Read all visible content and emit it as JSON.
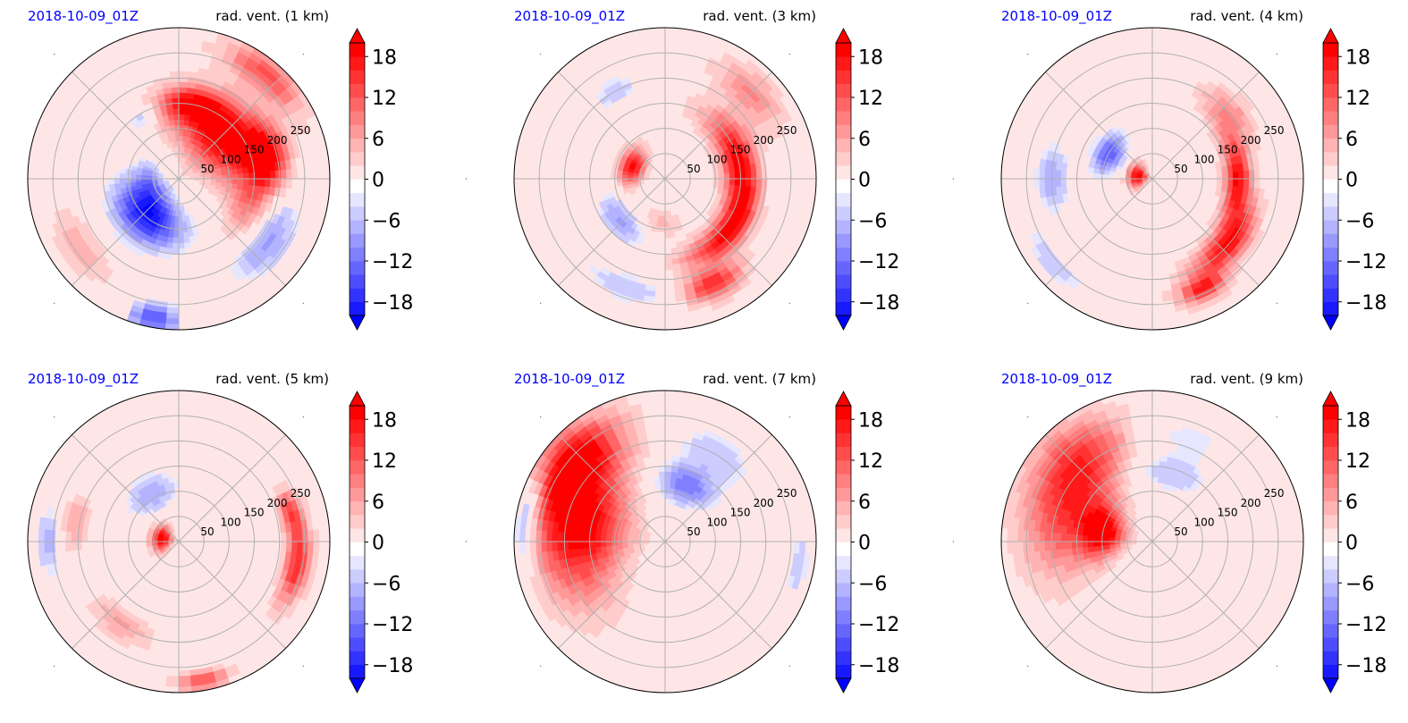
{
  "chart_data": [
    {
      "type": "heatmap",
      "projection": "polar",
      "title_left": "2018-10-09_01Z",
      "title_right": "rad. vent. (1 km)",
      "radial_ticks": [
        50,
        100,
        150,
        200,
        250
      ],
      "rmax": 300,
      "colorbar": {
        "ticks": [
          18,
          12,
          6,
          0,
          -6,
          -12,
          -18
        ],
        "range": [
          -20,
          20
        ],
        "extend": "both"
      },
      "blobs": [
        {
          "r": 120,
          "theta": 45,
          "sr": 70,
          "st": 50,
          "v": 20
        },
        {
          "r": 180,
          "theta": 15,
          "sr": 40,
          "st": 20,
          "v": 18
        },
        {
          "r": 270,
          "theta": 50,
          "sr": 35,
          "st": 20,
          "v": 12
        },
        {
          "r": 150,
          "theta": 80,
          "sr": 30,
          "st": 25,
          "v": 14
        },
        {
          "r": 95,
          "theta": 230,
          "sr": 55,
          "st": 45,
          "v": -20
        },
        {
          "r": 220,
          "theta": 325,
          "sr": 40,
          "st": 25,
          "v": -9
        },
        {
          "r": 150,
          "theta": 340,
          "sr": 35,
          "st": 25,
          "v": 7
        },
        {
          "r": 280,
          "theta": 260,
          "sr": 30,
          "st": 10,
          "v": -15
        },
        {
          "r": 240,
          "theta": 215,
          "sr": 40,
          "st": 20,
          "v": 5
        },
        {
          "r": 60,
          "theta": 185,
          "sr": 30,
          "st": 40,
          "v": -8
        },
        {
          "r": 140,
          "theta": 120,
          "sr": 25,
          "st": 15,
          "v": -7
        }
      ]
    },
    {
      "type": "heatmap",
      "projection": "polar",
      "title_left": "2018-10-09_01Z",
      "title_right": "rad. vent. (3 km)",
      "radial_ticks": [
        50,
        100,
        150,
        200,
        250
      ],
      "rmax": 300,
      "colorbar": {
        "ticks": [
          18,
          12,
          6,
          0,
          -6,
          -12,
          -18
        ],
        "range": [
          -20,
          20
        ],
        "extend": "both"
      },
      "blobs": [
        {
          "r": 150,
          "theta": 15,
          "sr": 35,
          "st": 40,
          "v": 18
        },
        {
          "r": 165,
          "theta": 320,
          "sr": 30,
          "st": 35,
          "v": 18
        },
        {
          "r": 230,
          "theta": 295,
          "sr": 30,
          "st": 15,
          "v": 16
        },
        {
          "r": 70,
          "theta": 160,
          "sr": 25,
          "st": 30,
          "v": 18
        },
        {
          "r": 240,
          "theta": 45,
          "sr": 40,
          "st": 20,
          "v": 8
        },
        {
          "r": 120,
          "theta": 225,
          "sr": 35,
          "st": 30,
          "v": -9
        },
        {
          "r": 230,
          "theta": 250,
          "sr": 30,
          "st": 25,
          "v": -6
        },
        {
          "r": 200,
          "theta": 120,
          "sr": 35,
          "st": 20,
          "v": -5
        },
        {
          "r": 90,
          "theta": 260,
          "sr": 30,
          "st": 30,
          "v": 5
        }
      ]
    },
    {
      "type": "heatmap",
      "projection": "polar",
      "title_left": "2018-10-09_01Z",
      "title_right": "rad. vent. (4 km)",
      "radial_ticks": [
        50,
        100,
        150,
        200,
        250
      ],
      "rmax": 300,
      "colorbar": {
        "ticks": [
          18,
          12,
          6,
          0,
          -6,
          -12,
          -18
        ],
        "range": [
          -20,
          20
        ],
        "extend": "both"
      },
      "blobs": [
        {
          "r": 30,
          "theta": 170,
          "sr": 20,
          "st": 40,
          "v": 20
        },
        {
          "r": 170,
          "theta": 0,
          "sr": 25,
          "st": 30,
          "v": 18
        },
        {
          "r": 200,
          "theta": 320,
          "sr": 30,
          "st": 25,
          "v": 18
        },
        {
          "r": 240,
          "theta": 295,
          "sr": 25,
          "st": 12,
          "v": 16
        },
        {
          "r": 100,
          "theta": 150,
          "sr": 30,
          "st": 25,
          "v": -14
        },
        {
          "r": 200,
          "theta": 180,
          "sr": 35,
          "st": 20,
          "v": -8
        },
        {
          "r": 260,
          "theta": 220,
          "sr": 25,
          "st": 20,
          "v": -6
        },
        {
          "r": 200,
          "theta": 40,
          "sr": 35,
          "st": 20,
          "v": 8
        }
      ]
    },
    {
      "type": "heatmap",
      "projection": "polar",
      "title_left": "2018-10-09_01Z",
      "title_right": "rad. vent. (5 km)",
      "radial_ticks": [
        50,
        100,
        150,
        200,
        250
      ],
      "rmax": 300,
      "colorbar": {
        "ticks": [
          18,
          12,
          6,
          0,
          -6,
          -12,
          -18
        ],
        "range": [
          -20,
          20
        ],
        "extend": "both"
      },
      "blobs": [
        {
          "r": 35,
          "theta": 170,
          "sr": 20,
          "st": 40,
          "v": 20
        },
        {
          "r": 240,
          "theta": 350,
          "sr": 25,
          "st": 20,
          "v": 16
        },
        {
          "r": 230,
          "theta": 15,
          "sr": 20,
          "st": 10,
          "v": 12
        },
        {
          "r": 110,
          "theta": 120,
          "sr": 40,
          "st": 30,
          "v": -8
        },
        {
          "r": 260,
          "theta": 180,
          "sr": 25,
          "st": 15,
          "v": -8
        },
        {
          "r": 200,
          "theta": 235,
          "sr": 30,
          "st": 20,
          "v": 6
        },
        {
          "r": 280,
          "theta": 280,
          "sr": 20,
          "st": 10,
          "v": 12
        },
        {
          "r": 210,
          "theta": 170,
          "sr": 30,
          "st": 15,
          "v": 6
        }
      ]
    },
    {
      "type": "heatmap",
      "projection": "polar",
      "title_left": "2018-10-09_01Z",
      "title_right": "rad. vent. (7 km)",
      "radial_ticks": [
        50,
        100,
        150,
        200,
        250
      ],
      "rmax": 300,
      "colorbar": {
        "ticks": [
          18,
          12,
          6,
          0,
          -6,
          -12,
          -18
        ],
        "range": [
          -20,
          20
        ],
        "extend": "both"
      },
      "blobs": [
        {
          "r": 170,
          "theta": 170,
          "sr": 90,
          "st": 45,
          "v": 20
        },
        {
          "r": 240,
          "theta": 140,
          "sr": 60,
          "st": 25,
          "v": 18
        },
        {
          "r": 120,
          "theta": 70,
          "sr": 40,
          "st": 30,
          "v": -12
        },
        {
          "r": 200,
          "theta": 60,
          "sr": 45,
          "st": 25,
          "v": -6
        },
        {
          "r": 270,
          "theta": 350,
          "sr": 25,
          "st": 20,
          "v": -5
        },
        {
          "r": 280,
          "theta": 170,
          "sr": 25,
          "st": 20,
          "v": -12
        }
      ]
    },
    {
      "type": "heatmap",
      "projection": "polar",
      "title_left": "2018-10-09_01Z",
      "title_right": "rad. vent. (9 km)",
      "radial_ticks": [
        50,
        100,
        150,
        200,
        250
      ],
      "rmax": 300,
      "colorbar": {
        "ticks": [
          18,
          12,
          6,
          0,
          -6,
          -12,
          -18
        ],
        "range": [
          -20,
          20
        ],
        "extend": "both"
      },
      "blobs": [
        {
          "r": 170,
          "theta": 160,
          "sr": 90,
          "st": 40,
          "v": 14
        },
        {
          "r": 100,
          "theta": 170,
          "sr": 40,
          "st": 25,
          "v": 17
        },
        {
          "r": 220,
          "theta": 130,
          "sr": 70,
          "st": 25,
          "v": 10
        },
        {
          "r": 140,
          "theta": 75,
          "sr": 40,
          "st": 35,
          "v": -6
        },
        {
          "r": 220,
          "theta": 70,
          "sr": 45,
          "st": 25,
          "v": -4
        }
      ]
    }
  ]
}
